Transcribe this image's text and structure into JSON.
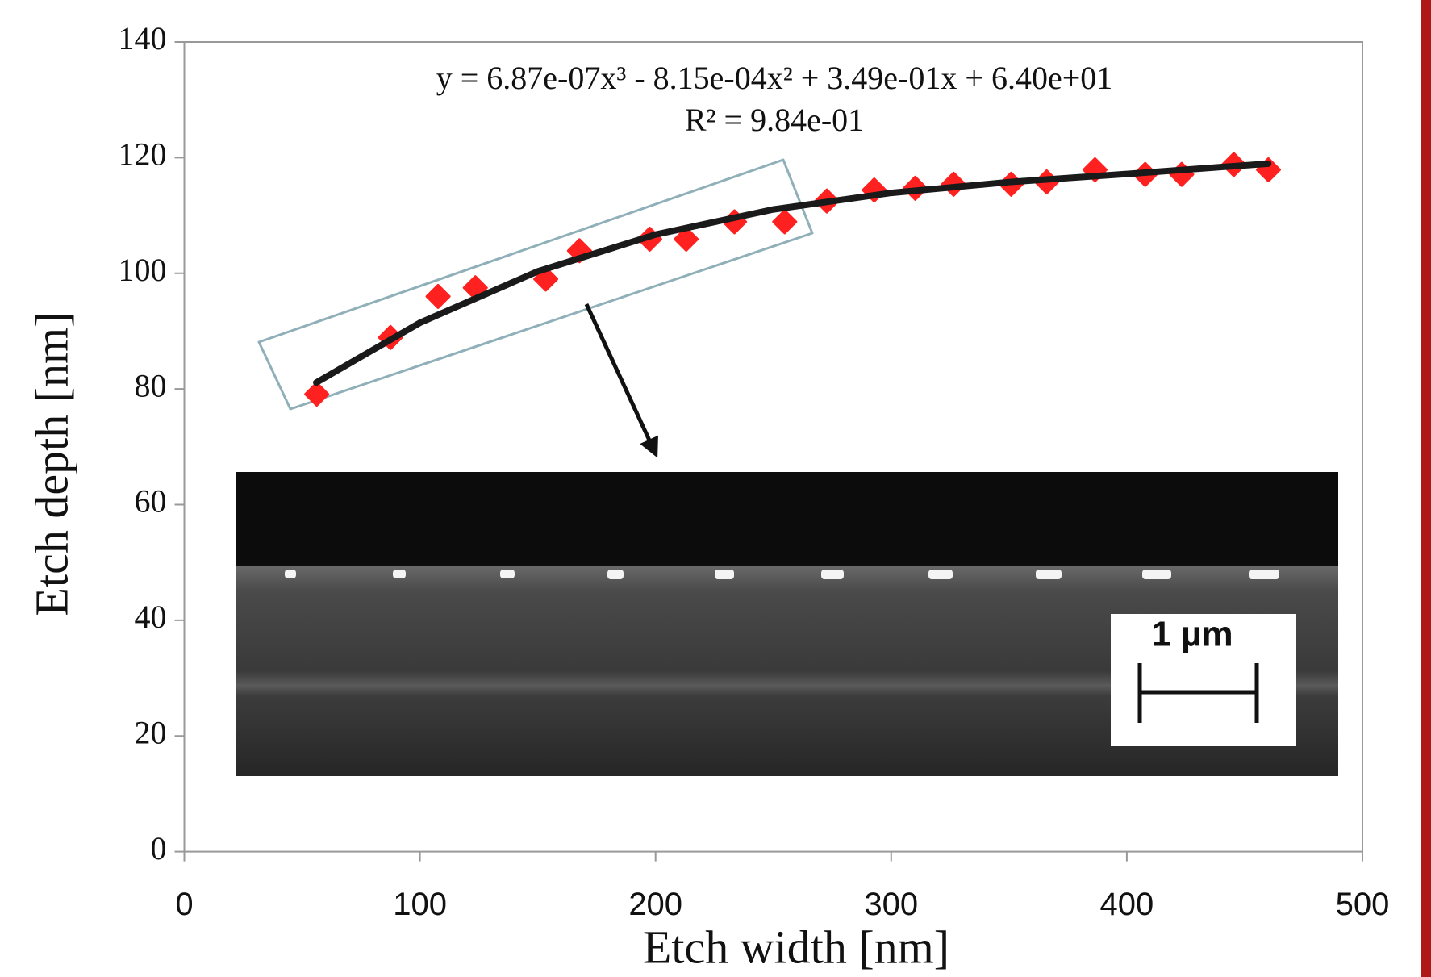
{
  "chart_data": {
    "type": "scatter",
    "equation": "y = 6.87e-07x³ - 8.15e-04x² + 3.49e-01x + 6.40e+01",
    "r_squared": "R² = 9.84e-01",
    "x_label": "Etch width [nm]",
    "y_label": "Etch depth [nm]",
    "inset_scale_label": "1 µm",
    "xlim": [
      0,
      500
    ],
    "xticks": [
      0,
      100,
      200,
      300,
      400,
      500
    ],
    "ylim": [
      0,
      140
    ],
    "yticks": [
      0,
      20,
      40,
      60,
      80,
      100,
      120,
      140
    ],
    "series": [
      {
        "mode": "markers",
        "color": "#ff2020",
        "x": [
          56.2,
          87.5,
          107.7,
          123.5,
          153.4,
          167.7,
          197.5,
          213,
          233.5,
          254.8,
          272.7,
          292.8,
          310.2,
          326.5,
          350.9,
          366,
          386.5,
          407.8,
          423.3,
          445.4,
          460.1
        ],
        "values": [
          79.1,
          88.9,
          96,
          97.5,
          99,
          103.9,
          105.9,
          105.9,
          108.9,
          108.9,
          112.5,
          114.4,
          114.7,
          115.4,
          115.4,
          115.8,
          117.9,
          117.1,
          117.1,
          118.8,
          117.9
        ]
      },
      {
        "mode": "line",
        "color": "#1a1a1a",
        "x": [
          56,
          100,
          150,
          200,
          250,
          300,
          350,
          400,
          460
        ],
        "values": [
          81.11,
          91.44,
          100.33,
          106.7,
          111.04,
          113.9,
          115.77,
          117.17,
          118.96
        ]
      }
    ]
  }
}
